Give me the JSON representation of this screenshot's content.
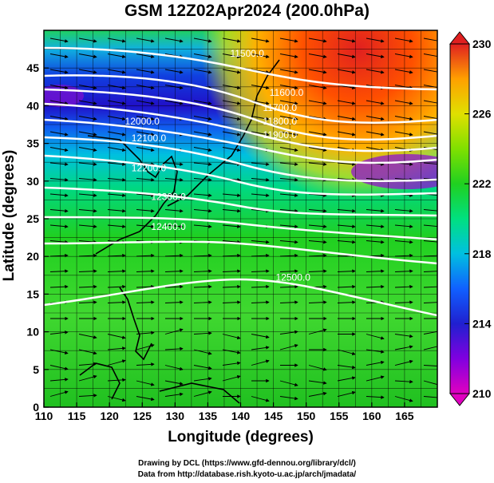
{
  "title": "GSM 12Z02Apr2024 (200.0hPa)",
  "x_axis": {
    "label": "Longitude (degrees)",
    "ticks": [
      "110",
      "115",
      "120",
      "125",
      "130",
      "135",
      "140",
      "145",
      "150",
      "155",
      "160",
      "165"
    ],
    "range": [
      110,
      170
    ]
  },
  "y_axis": {
    "label": "Latitude  (degrees)",
    "ticks": [
      "0",
      "5",
      "10",
      "15",
      "20",
      "25",
      "30",
      "35",
      "40",
      "45"
    ],
    "range": [
      0,
      50
    ]
  },
  "colorbar": {
    "labels": [
      "210",
      "214",
      "218",
      "222",
      "226",
      "230"
    ],
    "range": [
      210,
      230
    ],
    "colors": [
      "#e000c0",
      "#8000e0",
      "#2020d0",
      "#1060ff",
      "#00c0e0",
      "#00e080",
      "#20d020",
      "#80e000",
      "#e0e000",
      "#ffa000",
      "#ff4000",
      "#e02020"
    ]
  },
  "contours": [
    {
      "label": "11500.0",
      "lon": 141,
      "lat": 46.5
    },
    {
      "label": "11600.0",
      "lon": 147,
      "lat": 41.3
    },
    {
      "label": "11700.0",
      "lon": 146,
      "lat": 39.3
    },
    {
      "label": "11800.0",
      "lon": 146,
      "lat": 37.5
    },
    {
      "label": "11900.0",
      "lon": 146,
      "lat": 35.7
    },
    {
      "label": "12000.0",
      "lon": 125,
      "lat": 37.5
    },
    {
      "label": "12100.0",
      "lon": 126,
      "lat": 35.3
    },
    {
      "label": "12200.0",
      "lon": 126,
      "lat": 31.3
    },
    {
      "label": "12300.0",
      "lon": 129,
      "lat": 27.5
    },
    {
      "label": "12400.0",
      "lon": 129,
      "lat": 23.5
    },
    {
      "label": "12500.0",
      "lon": 148,
      "lat": 16.8
    }
  ],
  "credits": {
    "line1": "Drawing by DCL (https://www.gfd-dennou.org/library/dcl/)",
    "line2": "Data from http://database.rish.kyoto-u.ac.jp/arch/jmadata/"
  }
}
